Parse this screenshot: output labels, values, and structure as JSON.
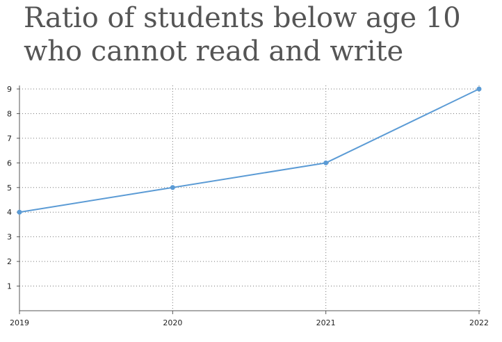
{
  "chart_data": {
    "type": "line",
    "title": "Ratio of students below age 10 who cannot read and write",
    "xlabel": "",
    "ylabel": "",
    "categories": [
      "2019",
      "2020",
      "2021",
      "2022"
    ],
    "series": [
      {
        "values": [
          4,
          5,
          6,
          9
        ]
      }
    ],
    "ylim": [
      0,
      9
    ],
    "yticks": [
      "1",
      "2",
      "3",
      "4",
      "5",
      "6",
      "7",
      "8",
      "9"
    ],
    "grid": "dotted",
    "legend": "none",
    "line_color": "#5b9bd5"
  }
}
